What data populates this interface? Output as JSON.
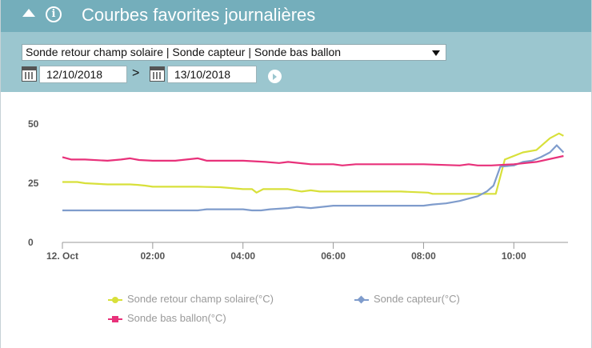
{
  "header": {
    "title": "Courbes favorites journalières",
    "info_glyph": "i"
  },
  "toolbar": {
    "curves_select": "Sonde retour champ solaire | Sonde capteur | Sonde bas ballon",
    "date_from": "12/10/2018",
    "separator": ">",
    "date_to": "13/10/2018"
  },
  "chart_data": {
    "type": "line",
    "x_unit": "hours since 12. Oct 00:00",
    "x_ticks": [
      {
        "x": 0,
        "label": "12. Oct"
      },
      {
        "x": 2,
        "label": "02:00"
      },
      {
        "x": 4,
        "label": "04:00"
      },
      {
        "x": 6,
        "label": "06:00"
      },
      {
        "x": 8,
        "label": "08:00"
      },
      {
        "x": 10,
        "label": "10:00"
      }
    ],
    "xlim": [
      0,
      11.2
    ],
    "ylim": [
      0,
      50
    ],
    "y_ticks": [
      0,
      25,
      50
    ],
    "series": [
      {
        "name": "Sonde retour champ solaire(°C)",
        "color": "#d8e03a",
        "marker": "circle",
        "points": [
          [
            0,
            25.5
          ],
          [
            0.33,
            25.5
          ],
          [
            0.5,
            25
          ],
          [
            1,
            24.5
          ],
          [
            1.5,
            24.5
          ],
          [
            1.67,
            24.3
          ],
          [
            1.83,
            24
          ],
          [
            2,
            23.5
          ],
          [
            2.5,
            23.5
          ],
          [
            3,
            23.5
          ],
          [
            3.5,
            23.3
          ],
          [
            4,
            22.5
          ],
          [
            4.2,
            22.5
          ],
          [
            4.3,
            21
          ],
          [
            4.45,
            22.5
          ],
          [
            5,
            22.5
          ],
          [
            5.3,
            21.5
          ],
          [
            5.5,
            22
          ],
          [
            5.7,
            21.5
          ],
          [
            6,
            21.5
          ],
          [
            6.5,
            21.5
          ],
          [
            7,
            21.5
          ],
          [
            7.5,
            21.5
          ],
          [
            8.1,
            21
          ],
          [
            8.2,
            20.5
          ],
          [
            8.5,
            20.5
          ],
          [
            9,
            20.5
          ],
          [
            9.6,
            20.5
          ],
          [
            9.8,
            35
          ],
          [
            10.2,
            38
          ],
          [
            10.5,
            39
          ],
          [
            10.8,
            44
          ],
          [
            11,
            46
          ],
          [
            11.1,
            45
          ]
        ]
      },
      {
        "name": "Sonde capteur(°C)",
        "color": "#7f9ccc",
        "marker": "diamond",
        "points": [
          [
            0,
            13.5
          ],
          [
            1,
            13.5
          ],
          [
            2,
            13.5
          ],
          [
            3,
            13.5
          ],
          [
            3.2,
            14
          ],
          [
            4,
            14
          ],
          [
            4.2,
            13.5
          ],
          [
            4.4,
            13.5
          ],
          [
            4.6,
            14
          ],
          [
            5,
            14.5
          ],
          [
            5.2,
            15
          ],
          [
            5.5,
            14.5
          ],
          [
            6,
            15.5
          ],
          [
            7,
            15.5
          ],
          [
            8,
            15.5
          ],
          [
            8.2,
            16
          ],
          [
            8.5,
            16.5
          ],
          [
            8.8,
            17.5
          ],
          [
            9,
            18.5
          ],
          [
            9.2,
            19.5
          ],
          [
            9.4,
            21.5
          ],
          [
            9.55,
            24
          ],
          [
            9.7,
            32
          ],
          [
            10,
            32.5
          ],
          [
            10.2,
            34
          ],
          [
            10.4,
            34.5
          ],
          [
            10.6,
            36
          ],
          [
            10.8,
            38
          ],
          [
            10.95,
            41
          ],
          [
            11.1,
            38
          ]
        ]
      },
      {
        "name": "Sonde bas ballon(°C)",
        "color": "#e8317a",
        "marker": "square",
        "points": [
          [
            0,
            36
          ],
          [
            0.2,
            35
          ],
          [
            0.5,
            35
          ],
          [
            1,
            34.5
          ],
          [
            1.3,
            35
          ],
          [
            1.5,
            35.5
          ],
          [
            1.7,
            34.8
          ],
          [
            2,
            34.5
          ],
          [
            2.5,
            34.5
          ],
          [
            3,
            35.5
          ],
          [
            3.2,
            34.5
          ],
          [
            4,
            34.5
          ],
          [
            4.5,
            34
          ],
          [
            4.8,
            33.5
          ],
          [
            5,
            34
          ],
          [
            5.5,
            33
          ],
          [
            6,
            33
          ],
          [
            6.2,
            32.5
          ],
          [
            6.5,
            33
          ],
          [
            7,
            33
          ],
          [
            8,
            33
          ],
          [
            8.8,
            32.5
          ],
          [
            9,
            33
          ],
          [
            9.2,
            32.5
          ],
          [
            9.5,
            32.5
          ],
          [
            10,
            33
          ],
          [
            10.5,
            34
          ],
          [
            11.1,
            36.5
          ]
        ]
      }
    ],
    "legend_placement": "bottom",
    "grid": false
  }
}
